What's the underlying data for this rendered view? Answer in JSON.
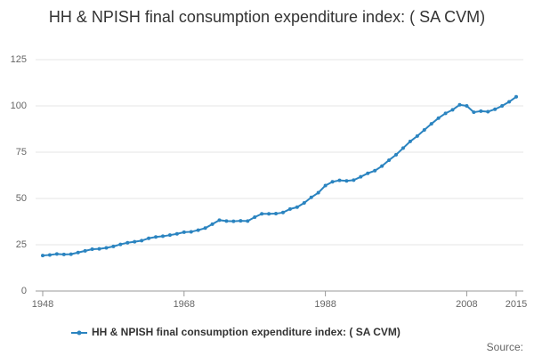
{
  "chart_data": {
    "type": "line",
    "title": "HH & NPISH final consumption expenditure index: ( SA CVM)",
    "source": "Source:",
    "x": [
      1948,
      1949,
      1950,
      1951,
      1952,
      1953,
      1954,
      1955,
      1956,
      1957,
      1958,
      1959,
      1960,
      1961,
      1962,
      1963,
      1964,
      1965,
      1966,
      1967,
      1968,
      1969,
      1970,
      1971,
      1972,
      1973,
      1974,
      1975,
      1976,
      1977,
      1978,
      1979,
      1980,
      1981,
      1982,
      1983,
      1984,
      1985,
      1986,
      1987,
      1988,
      1989,
      1990,
      1991,
      1992,
      1993,
      1994,
      1995,
      1996,
      1997,
      1998,
      1999,
      2000,
      2001,
      2002,
      2003,
      2004,
      2005,
      2006,
      2007,
      2008,
      2009,
      2010,
      2011,
      2012,
      2013,
      2014,
      2015
    ],
    "series": [
      {
        "name": "HH & NPISH final consumption expenditure index: ( SA CVM)",
        "color": "#2b84c0",
        "values": [
          19.2,
          19.5,
          20.0,
          19.8,
          19.9,
          20.8,
          21.7,
          22.6,
          22.8,
          23.3,
          24.1,
          25.2,
          26.1,
          26.6,
          27.2,
          28.5,
          29.2,
          29.6,
          30.2,
          30.9,
          31.8,
          32.0,
          32.9,
          34.0,
          36.1,
          38.3,
          37.8,
          37.7,
          37.9,
          37.8,
          39.9,
          41.7,
          41.7,
          41.8,
          42.4,
          44.3,
          45.3,
          47.6,
          50.6,
          53.1,
          57.0,
          59.0,
          59.8,
          59.5,
          59.9,
          61.7,
          63.6,
          65.0,
          67.5,
          70.7,
          73.6,
          77.2,
          80.8,
          83.7,
          87.0,
          90.3,
          93.4,
          96.0,
          97.9,
          100.6,
          100.0,
          96.6,
          97.2,
          96.9,
          98.2,
          100.0,
          102.2,
          104.9
        ]
      }
    ],
    "xlim": [
      1948,
      2015
    ],
    "xticks": [
      1948,
      1968,
      1988,
      2008,
      2015
    ],
    "ylim": [
      0,
      125
    ],
    "yticks": [
      0,
      25,
      50,
      75,
      100,
      125
    ],
    "grid": true
  }
}
